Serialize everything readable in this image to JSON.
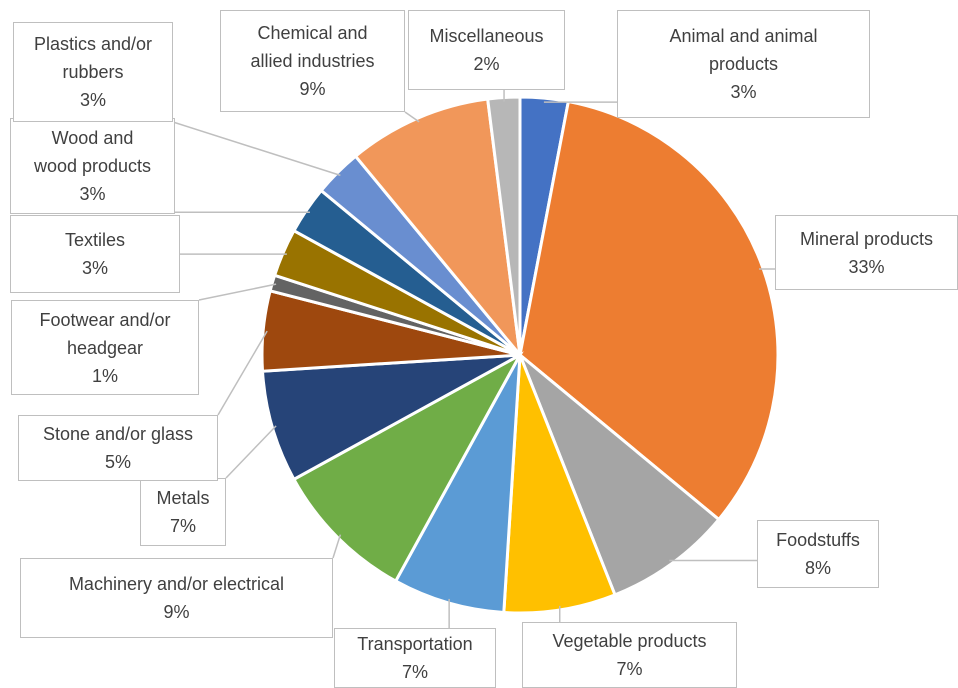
{
  "chart_data": {
    "type": "pie",
    "categories": [
      "Animal and animal products",
      "Mineral products",
      "Foodstuffs",
      "Vegetable products",
      "Transportation",
      "Machinery and/or electrical",
      "Metals",
      "Stone and/or glass",
      "Footwear and/or headgear",
      "Textiles",
      "Wood and wood products",
      "Plastics and/or rubbers",
      "Chemical and allied industries",
      "Miscellaneous"
    ],
    "values": [
      3,
      33,
      8,
      7,
      7,
      9,
      7,
      5,
      1,
      3,
      3,
      3,
      9,
      2
    ],
    "value_labels": [
      "3%",
      "33%",
      "8%",
      "7%",
      "7%",
      "9%",
      "7%",
      "5%",
      "1%",
      "3%",
      "3%",
      "3%",
      "9%",
      "2%"
    ],
    "colors": [
      "#4472c4",
      "#ed7d31",
      "#a5a5a5",
      "#ffc000",
      "#5b9bd5",
      "#70ad47",
      "#264478",
      "#9e480e",
      "#636363",
      "#997300",
      "#255e91",
      "#698ed0",
      "#f1975a",
      "#b7b7b7"
    ]
  }
}
